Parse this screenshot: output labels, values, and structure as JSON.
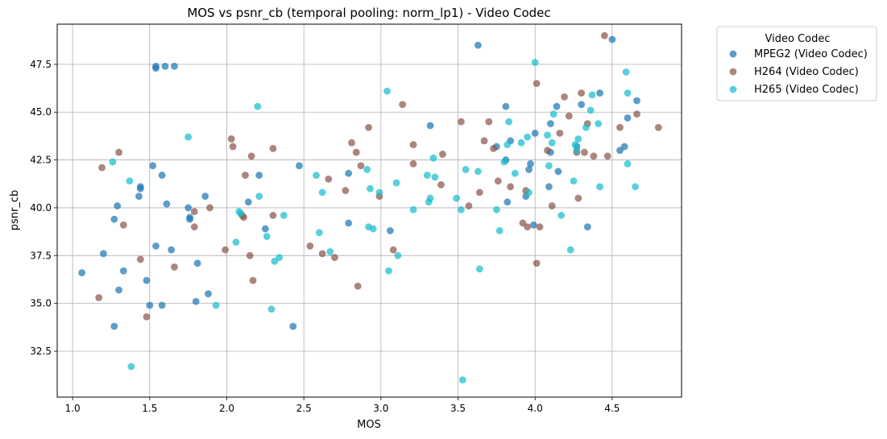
{
  "chart_data": {
    "type": "scatter",
    "title": "MOS vs psnr_cb (temporal pooling: norm_lp1) - Video Codec",
    "xlabel": "MOS",
    "ylabel": "psnr_cb",
    "xlim": [
      0.9,
      4.95
    ],
    "ylim": [
      30.1,
      49.6
    ],
    "xticks": [
      "1.0",
      "1.5",
      "2.0",
      "2.5",
      "3.0",
      "3.5",
      "4.0",
      "4.5"
    ],
    "yticks": [
      "32.5",
      "35.0",
      "37.5",
      "40.0",
      "42.5",
      "45.0",
      "47.5"
    ],
    "grid": true,
    "legend": {
      "title": "Video Codec",
      "position": "outside-top-right"
    },
    "series": [
      {
        "name": "MPEG2 (Video Codec)",
        "color": "#1f77b4",
        "points": [
          [
            1.06,
            36.6
          ],
          [
            1.2,
            37.6
          ],
          [
            1.27,
            33.8
          ],
          [
            1.27,
            39.4
          ],
          [
            1.29,
            40.1
          ],
          [
            1.3,
            35.7
          ],
          [
            1.33,
            36.7
          ],
          [
            1.43,
            40.6
          ],
          [
            1.44,
            41.0
          ],
          [
            1.44,
            41.1
          ],
          [
            1.48,
            36.2
          ],
          [
            1.5,
            34.9
          ],
          [
            1.52,
            42.2
          ],
          [
            1.54,
            38.0
          ],
          [
            1.54,
            47.3
          ],
          [
            1.54,
            47.4
          ],
          [
            1.58,
            41.7
          ],
          [
            1.58,
            34.9
          ],
          [
            1.6,
            47.4
          ],
          [
            1.61,
            40.2
          ],
          [
            1.64,
            37.8
          ],
          [
            1.66,
            47.4
          ],
          [
            1.75,
            40.0
          ],
          [
            1.76,
            39.5
          ],
          [
            1.76,
            39.4
          ],
          [
            1.8,
            35.1
          ],
          [
            1.81,
            37.1
          ],
          [
            1.86,
            40.6
          ],
          [
            1.88,
            35.5
          ],
          [
            2.14,
            40.3
          ],
          [
            2.21,
            41.7
          ],
          [
            2.25,
            38.9
          ],
          [
            2.43,
            33.8
          ],
          [
            2.47,
            42.2
          ],
          [
            2.79,
            41.8
          ],
          [
            2.79,
            39.2
          ],
          [
            3.06,
            38.8
          ],
          [
            3.32,
            44.3
          ],
          [
            3.63,
            48.5
          ],
          [
            3.75,
            43.2
          ],
          [
            3.81,
            45.3
          ],
          [
            3.81,
            42.5
          ],
          [
            3.82,
            40.3
          ],
          [
            3.84,
            43.5
          ],
          [
            3.94,
            40.6
          ],
          [
            3.96,
            42.0
          ],
          [
            3.97,
            42.3
          ],
          [
            3.99,
            39.1
          ],
          [
            4.0,
            43.9
          ],
          [
            4.09,
            41.1
          ],
          [
            4.1,
            42.9
          ],
          [
            4.1,
            44.4
          ],
          [
            4.14,
            45.3
          ],
          [
            4.15,
            41.9
          ],
          [
            4.27,
            43.2
          ],
          [
            4.3,
            45.4
          ],
          [
            4.34,
            39.0
          ],
          [
            4.42,
            46.0
          ],
          [
            4.5,
            48.8
          ],
          [
            4.55,
            43.0
          ],
          [
            4.58,
            43.2
          ],
          [
            4.6,
            44.7
          ],
          [
            4.66,
            45.6
          ]
        ]
      },
      {
        "name": "H264 (Video Codec)",
        "color": "#8c564b",
        "points": [
          [
            1.17,
            35.3
          ],
          [
            1.19,
            42.1
          ],
          [
            1.3,
            42.9
          ],
          [
            1.33,
            39.1
          ],
          [
            1.44,
            37.3
          ],
          [
            1.48,
            34.3
          ],
          [
            1.66,
            36.9
          ],
          [
            1.79,
            39.8
          ],
          [
            1.79,
            39.0
          ],
          [
            1.89,
            40.0
          ],
          [
            1.99,
            37.8
          ],
          [
            2.03,
            43.6
          ],
          [
            2.04,
            43.2
          ],
          [
            2.1,
            39.6
          ],
          [
            2.11,
            39.5
          ],
          [
            2.12,
            41.7
          ],
          [
            2.15,
            37.5
          ],
          [
            2.16,
            42.7
          ],
          [
            2.17,
            36.2
          ],
          [
            2.3,
            43.1
          ],
          [
            2.3,
            39.6
          ],
          [
            2.54,
            38.0
          ],
          [
            2.62,
            37.6
          ],
          [
            2.66,
            41.5
          ],
          [
            2.7,
            37.4
          ],
          [
            2.77,
            40.9
          ],
          [
            2.81,
            43.4
          ],
          [
            2.84,
            42.9
          ],
          [
            2.85,
            35.9
          ],
          [
            2.87,
            42.2
          ],
          [
            2.92,
            44.2
          ],
          [
            2.99,
            40.6
          ],
          [
            3.08,
            37.8
          ],
          [
            3.14,
            45.4
          ],
          [
            3.21,
            43.3
          ],
          [
            3.21,
            42.3
          ],
          [
            3.39,
            41.2
          ],
          [
            3.4,
            42.8
          ],
          [
            3.52,
            44.5
          ],
          [
            3.57,
            40.1
          ],
          [
            3.64,
            40.8
          ],
          [
            3.67,
            43.5
          ],
          [
            3.7,
            44.5
          ],
          [
            3.73,
            43.1
          ],
          [
            3.76,
            41.4
          ],
          [
            3.84,
            41.1
          ],
          [
            3.92,
            39.2
          ],
          [
            3.94,
            40.9
          ],
          [
            3.95,
            39.0
          ],
          [
            4.01,
            46.5
          ],
          [
            4.01,
            37.1
          ],
          [
            4.03,
            39.0
          ],
          [
            4.08,
            43.0
          ],
          [
            4.11,
            40.1
          ],
          [
            4.16,
            43.9
          ],
          [
            4.19,
            45.8
          ],
          [
            4.22,
            44.8
          ],
          [
            4.27,
            42.9
          ],
          [
            4.28,
            40.5
          ],
          [
            4.3,
            46.0
          ],
          [
            4.32,
            42.9
          ],
          [
            4.34,
            44.4
          ],
          [
            4.38,
            42.7
          ],
          [
            4.45,
            49.0
          ],
          [
            4.47,
            42.7
          ],
          [
            4.55,
            44.2
          ],
          [
            4.66,
            44.9
          ],
          [
            4.8,
            44.2
          ]
        ]
      },
      {
        "name": "H265 (Video Codec)",
        "color": "#17becf",
        "points": [
          [
            1.26,
            42.4
          ],
          [
            1.37,
            41.4
          ],
          [
            1.38,
            31.7
          ],
          [
            1.75,
            43.7
          ],
          [
            1.93,
            34.9
          ],
          [
            2.06,
            38.2
          ],
          [
            2.08,
            39.8
          ],
          [
            2.09,
            39.7
          ],
          [
            2.2,
            45.3
          ],
          [
            2.21,
            40.6
          ],
          [
            2.26,
            38.5
          ],
          [
            2.29,
            34.7
          ],
          [
            2.31,
            37.2
          ],
          [
            2.34,
            37.4
          ],
          [
            2.37,
            39.6
          ],
          [
            2.58,
            41.7
          ],
          [
            2.6,
            38.7
          ],
          [
            2.62,
            40.8
          ],
          [
            2.67,
            37.7
          ],
          [
            2.91,
            42.0
          ],
          [
            2.92,
            39.0
          ],
          [
            2.93,
            41.0
          ],
          [
            2.95,
            38.9
          ],
          [
            2.99,
            40.8
          ],
          [
            3.04,
            46.1
          ],
          [
            3.05,
            36.7
          ],
          [
            3.1,
            41.3
          ],
          [
            3.11,
            37.5
          ],
          [
            3.21,
            39.9
          ],
          [
            3.3,
            41.7
          ],
          [
            3.31,
            40.3
          ],
          [
            3.32,
            40.5
          ],
          [
            3.34,
            42.6
          ],
          [
            3.35,
            41.6
          ],
          [
            3.49,
            40.5
          ],
          [
            3.52,
            39.9
          ],
          [
            3.53,
            31.0
          ],
          [
            3.55,
            42.0
          ],
          [
            3.63,
            41.9
          ],
          [
            3.64,
            36.8
          ],
          [
            3.75,
            39.9
          ],
          [
            3.77,
            38.8
          ],
          [
            3.8,
            42.4
          ],
          [
            3.82,
            43.3
          ],
          [
            3.83,
            44.5
          ],
          [
            3.87,
            41.8
          ],
          [
            3.91,
            43.4
          ],
          [
            3.95,
            43.7
          ],
          [
            3.96,
            40.8
          ],
          [
            4.0,
            47.6
          ],
          [
            4.08,
            43.8
          ],
          [
            4.09,
            42.2
          ],
          [
            4.11,
            43.4
          ],
          [
            4.12,
            44.9
          ],
          [
            4.17,
            39.6
          ],
          [
            4.23,
            37.8
          ],
          [
            4.25,
            41.4
          ],
          [
            4.26,
            43.3
          ],
          [
            4.27,
            43.0
          ],
          [
            4.28,
            43.6
          ],
          [
            4.33,
            44.2
          ],
          [
            4.36,
            45.1
          ],
          [
            4.37,
            45.9
          ],
          [
            4.41,
            44.4
          ],
          [
            4.42,
            41.1
          ],
          [
            4.59,
            47.1
          ],
          [
            4.6,
            46.0
          ],
          [
            4.6,
            42.3
          ],
          [
            4.65,
            41.1
          ]
        ]
      }
    ]
  }
}
